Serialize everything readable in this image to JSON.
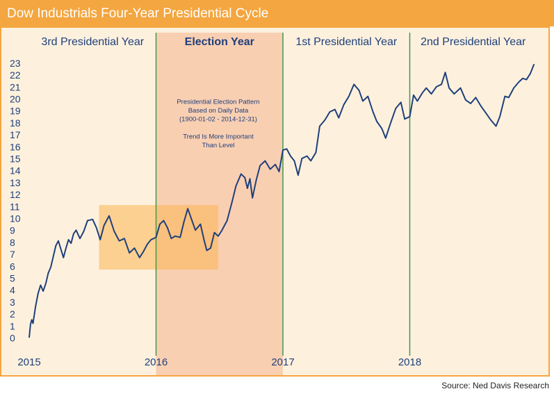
{
  "chart_data": {
    "type": "line",
    "title": "Dow Industrials Four-Year Presidential Cycle",
    "source": "Source: Ned Davis Research",
    "periods": [
      {
        "label": "3rd Presidential Year",
        "range": [
          2015,
          2016
        ],
        "shaded": false
      },
      {
        "label": "Election Year",
        "range": [
          2016,
          2017
        ],
        "shaded": true
      },
      {
        "label": "1st Presidential Year",
        "range": [
          2017,
          2018
        ],
        "shaded": false
      },
      {
        "label": "2nd Presidential Year",
        "range": [
          2018,
          2019
        ],
        "shaded": false
      }
    ],
    "annotations": [
      [
        "Presidential Election Pattern",
        "Based on Daily Data",
        "(1900-01-02 - 2014-12-31)"
      ],
      [
        "Trend Is More Important",
        "Than Level"
      ]
    ],
    "highlight_box": {
      "x": [
        2015.55,
        2016.49
      ],
      "y": [
        5.8,
        11.2
      ]
    },
    "color": "#1f3f7a",
    "x": [
      2015.0,
      2015.01,
      2015.02,
      2015.03,
      2015.05,
      2015.07,
      2015.09,
      2015.11,
      2015.13,
      2015.15,
      2015.17,
      2015.19,
      2015.21,
      2015.23,
      2015.25,
      2015.27,
      2015.29,
      2015.31,
      2015.33,
      2015.35,
      2015.37,
      2015.4,
      2015.43,
      2015.46,
      2015.5,
      2015.53,
      2015.56,
      2015.59,
      2015.63,
      2015.67,
      2015.71,
      2015.75,
      2015.79,
      2015.83,
      2015.87,
      2015.9,
      2015.93,
      2015.96,
      2016.0,
      2016.03,
      2016.06,
      2016.09,
      2016.12,
      2016.15,
      2016.19,
      2016.22,
      2016.25,
      2016.28,
      2016.31,
      2016.35,
      2016.38,
      2016.4,
      2016.43,
      2016.46,
      2016.49,
      2016.52,
      2016.56,
      2016.6,
      2016.63,
      2016.67,
      2016.7,
      2016.72,
      2016.74,
      2016.76,
      2016.79,
      2016.82,
      2016.86,
      2016.9,
      2016.94,
      2016.97,
      2017.0,
      2017.03,
      2017.06,
      2017.09,
      2017.12,
      2017.15,
      2017.19,
      2017.22,
      2017.26,
      2017.29,
      2017.33,
      2017.37,
      2017.41,
      2017.44,
      2017.48,
      2017.52,
      2017.56,
      2017.6,
      2017.63,
      2017.67,
      2017.71,
      2017.74,
      2017.78,
      2017.81,
      2017.85,
      2017.89,
      2017.93,
      2017.96,
      2018.0,
      2018.03,
      2018.06,
      2018.1,
      2018.13,
      2018.17,
      2018.21,
      2018.25,
      2018.28,
      2018.31,
      2018.35,
      2018.4,
      2018.44,
      2018.48,
      2018.52,
      2018.56,
      2018.6,
      2018.64,
      2018.68,
      2018.71,
      2018.75,
      2018.78,
      2018.82,
      2018.86,
      2018.89,
      2018.92,
      2018.95,
      2018.98
    ],
    "values": [
      0.1,
      1.2,
      1.6,
      1.3,
      2.7,
      3.8,
      4.5,
      4.0,
      4.6,
      5.5,
      6.0,
      6.9,
      7.8,
      8.2,
      7.5,
      6.8,
      7.6,
      8.3,
      8.0,
      8.8,
      9.1,
      8.4,
      9.0,
      9.9,
      10.0,
      9.3,
      8.3,
      9.5,
      10.3,
      9.0,
      8.2,
      8.4,
      7.2,
      7.6,
      6.8,
      7.3,
      7.9,
      8.3,
      8.5,
      9.6,
      9.9,
      9.3,
      8.4,
      8.6,
      8.5,
      9.8,
      10.9,
      10.0,
      9.1,
      9.6,
      8.2,
      7.4,
      7.6,
      8.9,
      8.6,
      9.1,
      9.9,
      11.5,
      12.8,
      13.8,
      13.5,
      12.6,
      13.4,
      11.8,
      13.3,
      14.5,
      14.9,
      14.2,
      14.6,
      14.0,
      15.8,
      15.9,
      15.3,
      14.9,
      13.7,
      15.1,
      15.3,
      14.9,
      15.6,
      17.8,
      18.3,
      19.0,
      19.2,
      18.5,
      19.6,
      20.3,
      21.3,
      20.8,
      19.9,
      20.3,
      19.0,
      18.2,
      17.6,
      16.8,
      18.1,
      19.3,
      19.8,
      18.4,
      18.6,
      20.4,
      19.9,
      20.6,
      21.0,
      20.5,
      21.1,
      21.3,
      22.3,
      21.0,
      20.5,
      21.0,
      20.0,
      19.7,
      20.2,
      19.5,
      18.9,
      18.3,
      17.8,
      18.6,
      20.3,
      20.2,
      21.0,
      21.5,
      21.8,
      21.7,
      22.2,
      23.0
    ],
    "xlim": [
      2015,
      2019
    ],
    "xticks": [
      2015,
      2016,
      2017,
      2018
    ],
    "ylim": [
      -1,
      24
    ],
    "yticks": [
      0,
      1,
      2,
      3,
      4,
      5,
      6,
      7,
      8,
      9,
      10,
      11,
      12,
      13,
      14,
      15,
      16,
      17,
      18,
      19,
      20,
      21,
      22,
      23
    ]
  }
}
